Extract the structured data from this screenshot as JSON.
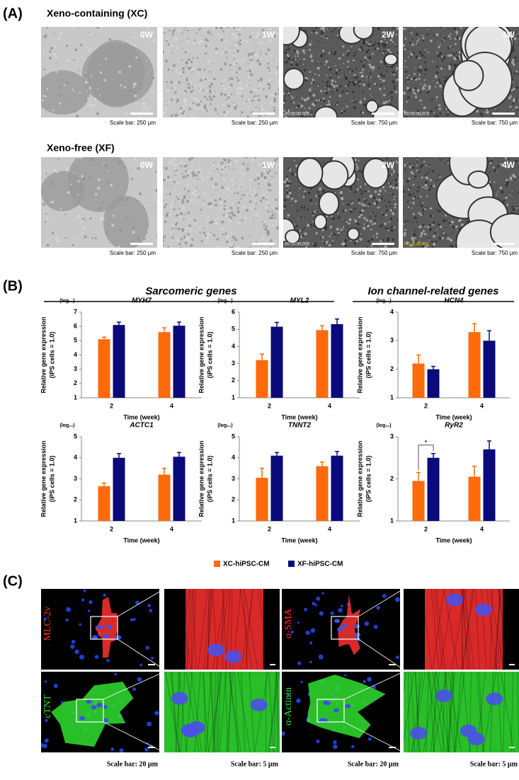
{
  "panel_a": {
    "label": "(A)",
    "rows": [
      {
        "title": "Xeno-containing (XC)",
        "images": [
          {
            "label": "0W",
            "scale": "Scale bar: 250 µm"
          },
          {
            "label": "1W",
            "scale": "Scale bar: 250 µm"
          },
          {
            "label": "2W",
            "scale": "Scale bar: 750 µm",
            "stamp": "00:00:00.000"
          },
          {
            "label": "4W",
            "scale": "Scale bar: 750 µm",
            "stamp": "00:00:00.000"
          }
        ]
      },
      {
        "title": "Xeno-free (XF)",
        "images": [
          {
            "label": "0W",
            "scale": "Scale bar: 250 µm"
          },
          {
            "label": "1W",
            "scale": "Scale bar: 250 µm"
          },
          {
            "label": "2W",
            "scale": "Scale bar: 750 µm",
            "stamp": "00:00:00.000"
          },
          {
            "label": "4W",
            "scale": "Scale bar: 750 µm",
            "stamp": "00:00:00.000"
          }
        ]
      }
    ]
  },
  "panel_b": {
    "label": "(B)",
    "groups": [
      "Sarcomeric genes",
      "Ion channel-related genes"
    ]
  },
  "chart_data": [
    {
      "type": "bar",
      "title": "MYH7",
      "log_label": "(log₁₀)",
      "ylabel": [
        "Relative gene expression",
        "(iPS cells = 1.0)"
      ],
      "xlabel": "Time (week)",
      "categories": [
        "2",
        "4"
      ],
      "ylim": [
        1,
        7
      ],
      "yticks": [
        1,
        2,
        3,
        4,
        5,
        6,
        7
      ],
      "series": [
        {
          "name": "XC-hiPSC-CM",
          "color": "#ff6a0a",
          "values": [
            5.1,
            5.6
          ],
          "errors": [
            0.15,
            0.3
          ]
        },
        {
          "name": "XF-hiPSC-CM",
          "color": "#0a0a7a",
          "values": [
            6.1,
            6.05
          ],
          "errors": [
            0.2,
            0.25
          ]
        }
      ]
    },
    {
      "type": "bar",
      "title": "MYL2",
      "log_label": "(log₁₀)",
      "ylabel": [
        "Relative gene expression",
        "(iPS cells = 1.0)"
      ],
      "xlabel": "Time (week)",
      "categories": [
        "2",
        "4"
      ],
      "ylim": [
        1,
        6
      ],
      "yticks": [
        1,
        2,
        3,
        4,
        5,
        6
      ],
      "series": [
        {
          "name": "XC-hiPSC-CM",
          "color": "#ff6a0a",
          "values": [
            3.2,
            4.95
          ],
          "errors": [
            0.35,
            0.25
          ]
        },
        {
          "name": "XF-hiPSC-CM",
          "color": "#0a0a7a",
          "values": [
            5.15,
            5.3
          ],
          "errors": [
            0.25,
            0.3
          ]
        }
      ]
    },
    {
      "type": "bar",
      "title": "HCN4",
      "log_label": "(log₁₀)",
      "ylabel": [
        "Relative gene expression",
        "(iPS cells = 1.0)"
      ],
      "xlabel": "Time (week)",
      "categories": [
        "2",
        "4"
      ],
      "ylim": [
        1,
        4
      ],
      "yticks": [
        1,
        2,
        3,
        4
      ],
      "series": [
        {
          "name": "XC-hiPSC-CM",
          "color": "#ff6a0a",
          "values": [
            2.2,
            3.3
          ],
          "errors": [
            0.3,
            0.3
          ]
        },
        {
          "name": "XF-hiPSC-CM",
          "color": "#0a0a7a",
          "values": [
            2.0,
            3.0
          ],
          "errors": [
            0.1,
            0.35
          ]
        }
      ]
    },
    {
      "type": "bar",
      "title": "ACTC1",
      "log_label": "(log₁₀)",
      "ylabel": [
        "Relative gene expression",
        "(iPS cells = 1.0)"
      ],
      "xlabel": "Time (week)",
      "categories": [
        "2",
        "4"
      ],
      "ylim": [
        1,
        5
      ],
      "yticks": [
        1,
        2,
        3,
        4,
        5
      ],
      "series": [
        {
          "name": "XC-hiPSC-CM",
          "color": "#ff6a0a",
          "values": [
            2.65,
            3.2
          ],
          "errors": [
            0.15,
            0.3
          ]
        },
        {
          "name": "XF-hiPSC-CM",
          "color": "#0a0a7a",
          "values": [
            4.0,
            4.05
          ],
          "errors": [
            0.2,
            0.2
          ]
        }
      ]
    },
    {
      "type": "bar",
      "title": "TNNT2",
      "log_label": "(log₁₀)",
      "ylabel": [
        "Relative gene expression",
        "(iPS cells = 1.0)"
      ],
      "xlabel": "Time (week)",
      "categories": [
        "2",
        "4"
      ],
      "ylim": [
        1,
        5
      ],
      "yticks": [
        1,
        2,
        3,
        4,
        5
      ],
      "series": [
        {
          "name": "XC-hiPSC-CM",
          "color": "#ff6a0a",
          "values": [
            3.05,
            3.6
          ],
          "errors": [
            0.45,
            0.2
          ]
        },
        {
          "name": "XF-hiPSC-CM",
          "color": "#0a0a7a",
          "values": [
            4.1,
            4.1
          ],
          "errors": [
            0.15,
            0.2
          ]
        }
      ]
    },
    {
      "type": "bar",
      "title": "RyR2",
      "log_label": "(log₁₀)",
      "ylabel": [
        "Relative gene expression",
        "(iPS cells = 1.0)"
      ],
      "xlabel": "Time (week)",
      "categories": [
        "2",
        "4"
      ],
      "ylim": [
        1,
        3
      ],
      "yticks": [
        1,
        2,
        3
      ],
      "annotation": "*",
      "series": [
        {
          "name": "XC-hiPSC-CM",
          "color": "#ff6a0a",
          "values": [
            1.95,
            2.05
          ],
          "errors": [
            0.2,
            0.25
          ]
        },
        {
          "name": "XF-hiPSC-CM",
          "color": "#0a0a7a",
          "values": [
            2.5,
            2.7
          ],
          "errors": [
            0.1,
            0.2
          ]
        }
      ]
    }
  ],
  "panel_c": {
    "label": "(C)",
    "stains": [
      {
        "name": "MLC-2v",
        "color": "#ff3030"
      },
      {
        "name": "α-SMA",
        "color": "#ff3030"
      },
      {
        "name": "cTNT",
        "color": "#30e030"
      },
      {
        "name": "α-Actinin",
        "color": "#30e030"
      }
    ],
    "scales": [
      "Scale bar: 20 µm",
      "Scale bar:  5 µm"
    ]
  }
}
